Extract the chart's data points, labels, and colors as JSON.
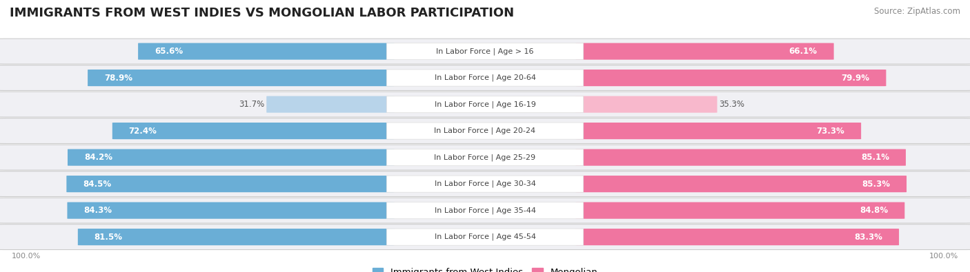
{
  "title": "IMMIGRANTS FROM WEST INDIES VS MONGOLIAN LABOR PARTICIPATION",
  "source": "Source: ZipAtlas.com",
  "categories": [
    "In Labor Force | Age > 16",
    "In Labor Force | Age 20-64",
    "In Labor Force | Age 16-19",
    "In Labor Force | Age 20-24",
    "In Labor Force | Age 25-29",
    "In Labor Force | Age 30-34",
    "In Labor Force | Age 35-44",
    "In Labor Force | Age 45-54"
  ],
  "west_indies_values": [
    65.6,
    78.9,
    31.7,
    72.4,
    84.2,
    84.5,
    84.3,
    81.5
  ],
  "mongolian_values": [
    66.1,
    79.9,
    35.3,
    73.3,
    85.1,
    85.3,
    84.8,
    83.3
  ],
  "west_indies_color": "#6aaed6",
  "mongolian_color": "#f075a0",
  "west_indies_light_color": "#b8d4ea",
  "mongolian_light_color": "#f8b8cc",
  "row_bg_color": "#f0f0f4",
  "legend_west_indies": "Immigrants from West Indies",
  "legend_mongolian": "Mongolian",
  "max_value": 100.0,
  "title_fontsize": 13,
  "label_fontsize": 8.0,
  "value_fontsize": 8.5,
  "figsize": [
    14.06,
    3.95
  ],
  "dpi": 100
}
